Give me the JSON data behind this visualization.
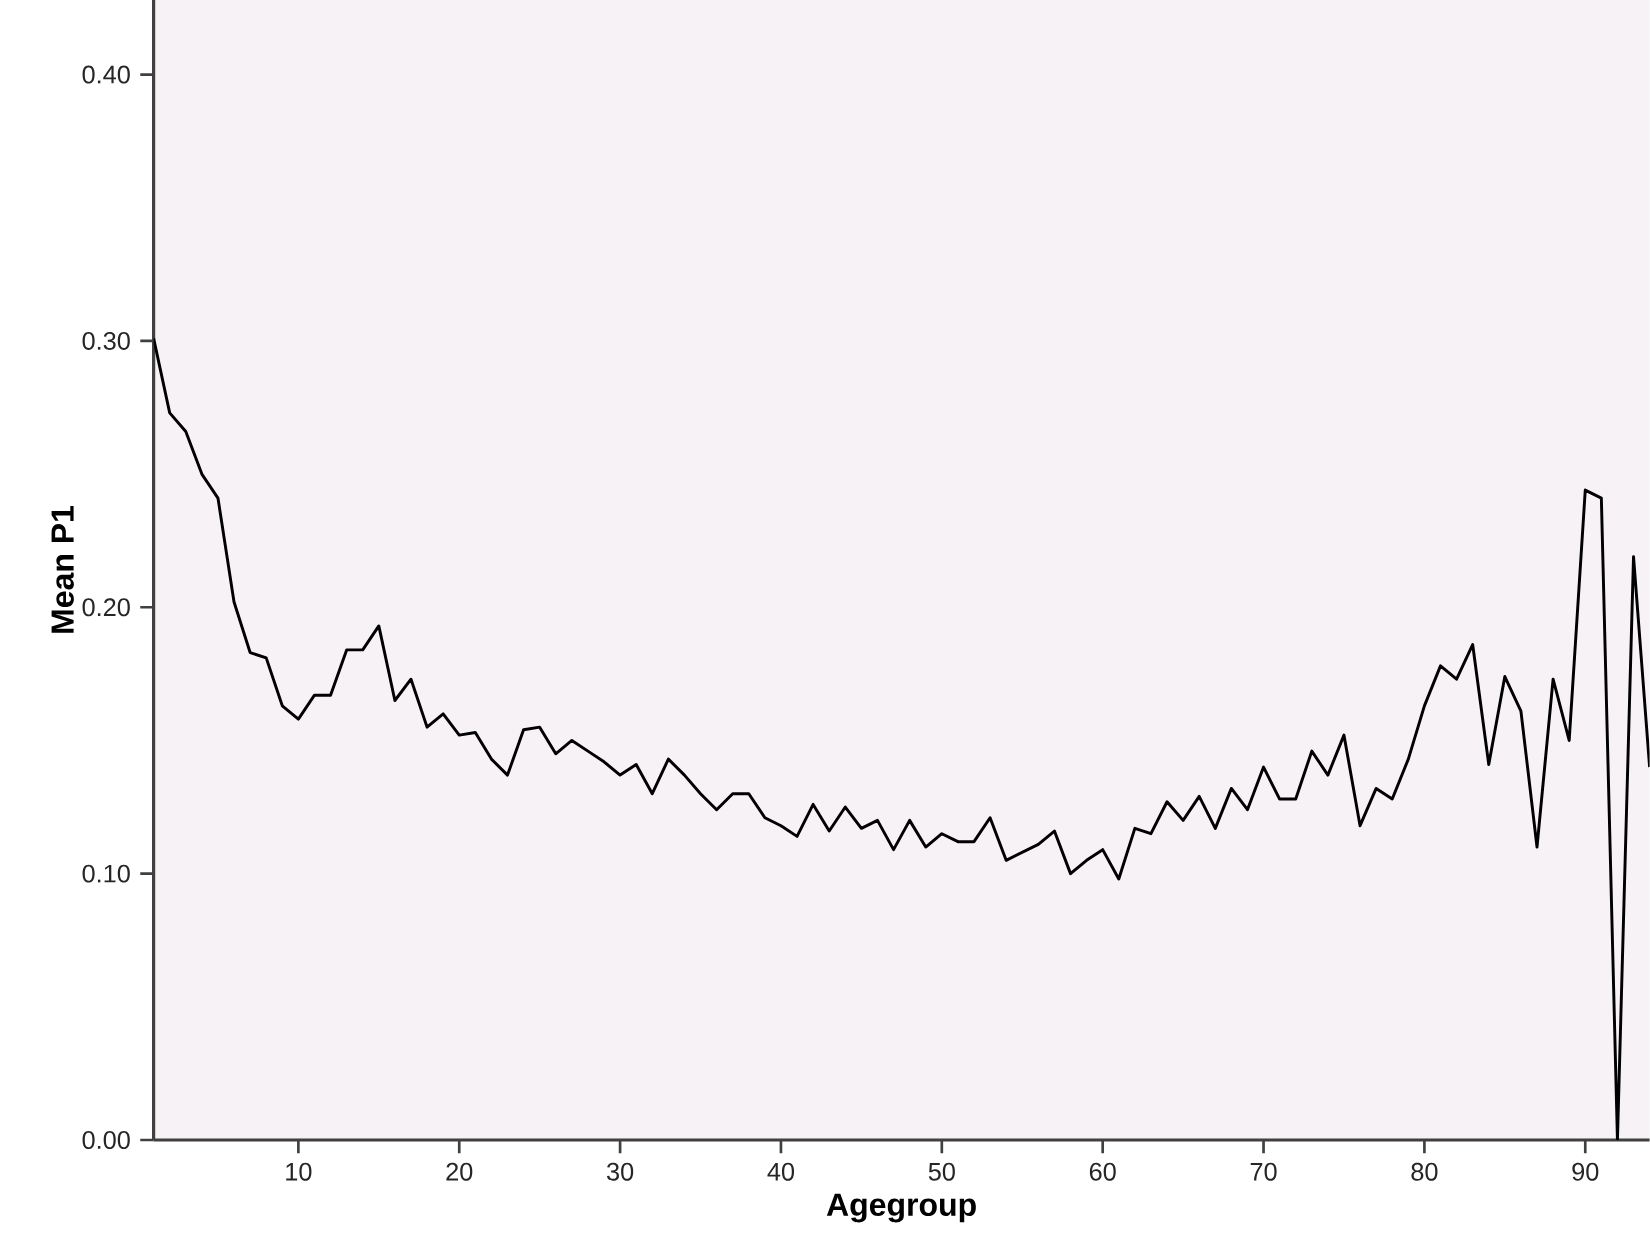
{
  "chart_data": {
    "type": "line",
    "xlabel": "Agegroup",
    "ylabel": "Mean P1",
    "x": [
      1,
      2,
      3,
      4,
      5,
      6,
      7,
      8,
      9,
      10,
      11,
      12,
      13,
      14,
      15,
      16,
      17,
      18,
      19,
      20,
      21,
      22,
      23,
      24,
      25,
      26,
      27,
      28,
      29,
      30,
      31,
      32,
      33,
      34,
      35,
      36,
      37,
      38,
      39,
      40,
      41,
      42,
      43,
      44,
      45,
      46,
      47,
      48,
      49,
      50,
      51,
      52,
      53,
      54,
      55,
      56,
      57,
      58,
      59,
      60,
      61,
      62,
      63,
      64,
      65,
      66,
      67,
      68,
      69,
      70,
      71,
      72,
      73,
      74,
      75,
      76,
      77,
      78,
      79,
      80,
      81,
      82,
      83,
      84,
      85,
      86,
      87,
      88,
      89,
      90,
      91,
      92,
      93,
      94
    ],
    "values": [
      0.301,
      0.273,
      0.266,
      0.25,
      0.241,
      0.202,
      0.183,
      0.181,
      0.163,
      0.158,
      0.167,
      0.167,
      0.184,
      0.184,
      0.193,
      0.165,
      0.173,
      0.155,
      0.16,
      0.152,
      0.153,
      0.143,
      0.137,
      0.154,
      0.155,
      0.145,
      0.15,
      0.146,
      0.142,
      0.137,
      0.141,
      0.13,
      0.143,
      0.137,
      0.13,
      0.124,
      0.13,
      0.13,
      0.121,
      0.118,
      0.114,
      0.126,
      0.116,
      0.125,
      0.117,
      0.12,
      0.109,
      0.12,
      0.11,
      0.115,
      0.112,
      0.112,
      0.121,
      0.105,
      0.108,
      0.111,
      0.116,
      0.1,
      0.105,
      0.109,
      0.098,
      0.117,
      0.115,
      0.127,
      0.12,
      0.129,
      0.117,
      0.132,
      0.124,
      0.14,
      0.128,
      0.128,
      0.146,
      0.137,
      0.152,
      0.118,
      0.132,
      0.128,
      0.143,
      0.163,
      0.178,
      0.173,
      0.186,
      0.141,
      0.174,
      0.161,
      0.11,
      0.173,
      0.15,
      0.244,
      0.241,
      0.0,
      0.219,
      0.14
    ],
    "color": "#000000",
    "xlim": [
      1,
      94
    ],
    "ylim": [
      0,
      0.428
    ],
    "xticks": [
      10,
      20,
      30,
      40,
      50,
      60,
      70,
      80,
      90
    ],
    "yticks": [
      {
        "value": 0,
        "label": "0.00"
      },
      {
        "value": 0.1,
        "label": "0.10"
      },
      {
        "value": 0.2,
        "label": "0.20"
      },
      {
        "value": 0.3,
        "label": "0.30"
      },
      {
        "value": 0.4,
        "label": "0.40"
      }
    ],
    "grid": false,
    "marker": "none",
    "line_style": "solid"
  }
}
